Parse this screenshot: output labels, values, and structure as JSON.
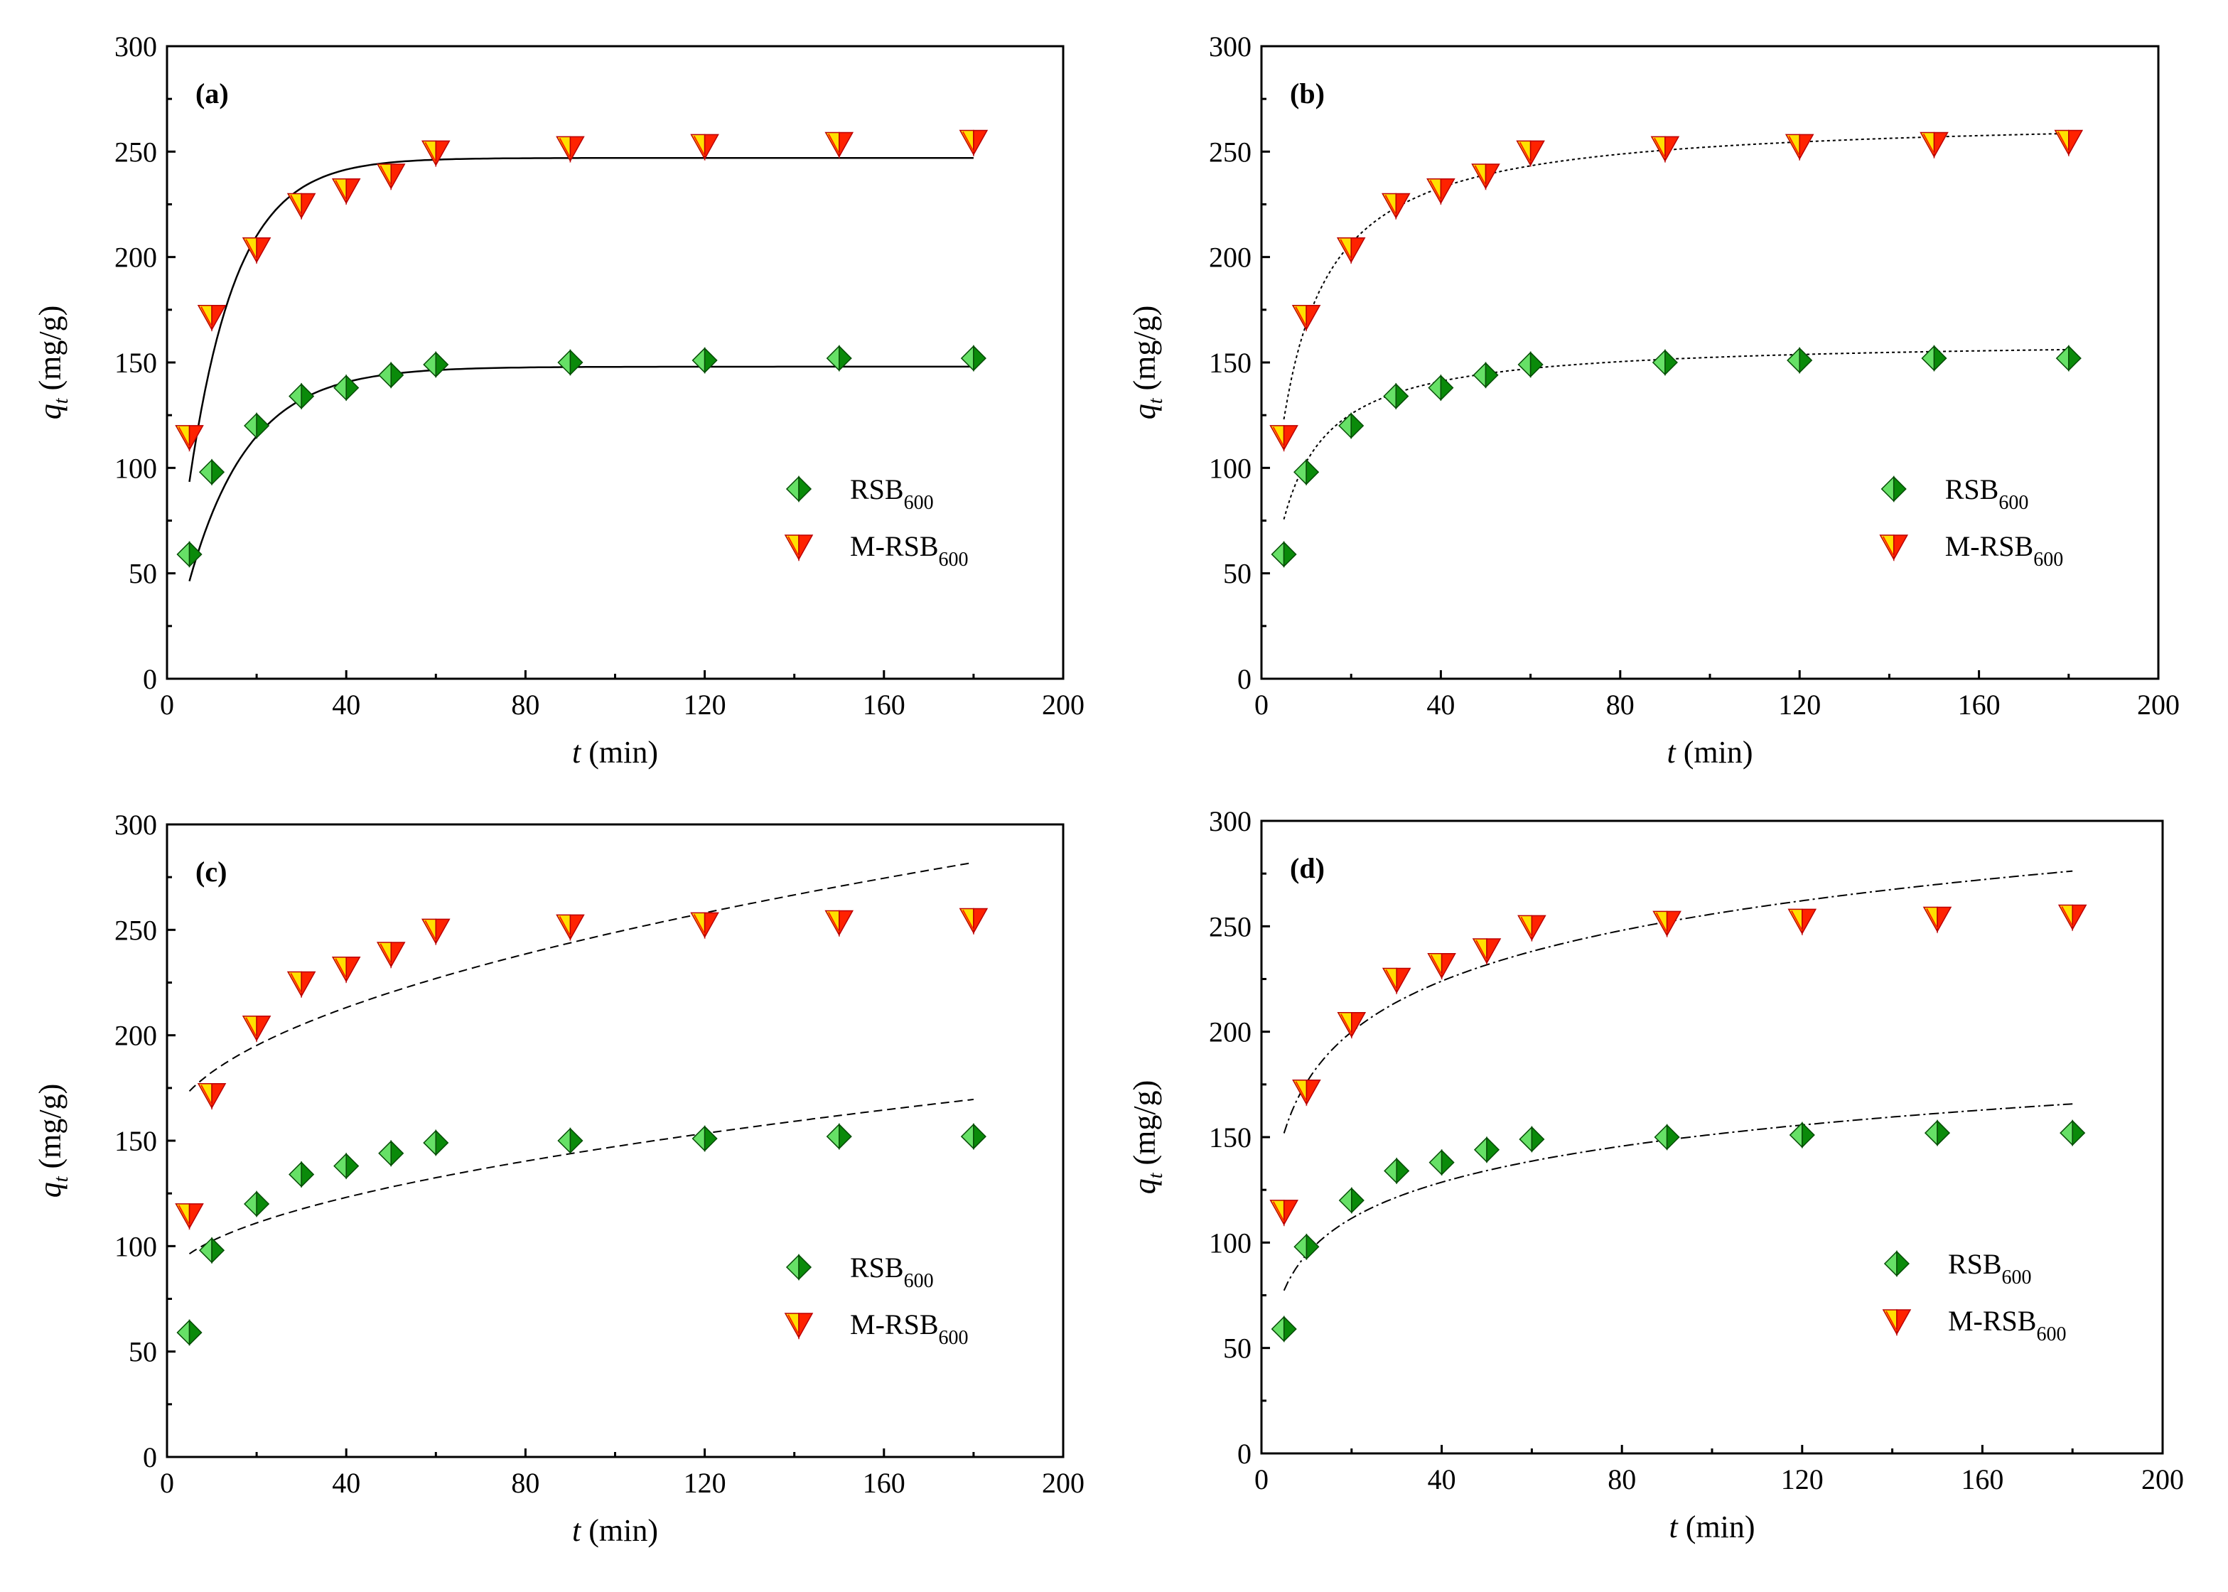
{
  "colors": {
    "rsb_light": "#66e066",
    "rsb_dark": "#0a8a0a",
    "mrsb_fill": "#ffe000",
    "mrsb_edge": "#ff2200",
    "axis": "#000000"
  },
  "chart_data": [
    {
      "panel": "(a)",
      "type": "scatter",
      "fit_style": "solid",
      "fit_model": "pseudo-first-order",
      "xlabel": {
        "var": "t",
        "unit": " (min)"
      },
      "ylabel": {
        "var": "q",
        "sub": "t",
        "unit": " (mg/g)"
      },
      "xlim": [
        0,
        200
      ],
      "ylim": [
        0,
        300
      ],
      "xticks": [
        0,
        40,
        80,
        120,
        160,
        200
      ],
      "yticks": [
        0,
        50,
        100,
        150,
        200,
        250,
        300
      ],
      "x": [
        5,
        10,
        20,
        30,
        40,
        50,
        60,
        90,
        120,
        150,
        180
      ],
      "series": [
        {
          "name": "RSB",
          "sub": "600",
          "marker": "diamond",
          "values": [
            59,
            98,
            120,
            134,
            138,
            144,
            149,
            150,
            151,
            152,
            152
          ]
        },
        {
          "name": "M-RSB",
          "sub": "600",
          "marker": "triangle-down",
          "values": [
            115,
            172,
            204,
            225,
            232,
            239,
            250,
            252,
            253,
            254,
            255
          ]
        }
      ],
      "fits": [
        {
          "series": "RSB",
          "qe": 148,
          "k": 0.075,
          "t0": 0,
          "tstart": 5,
          "tend": 180
        },
        {
          "series": "M-RSB",
          "qe": 247,
          "k": 0.095,
          "t0": 0,
          "tstart": 5,
          "tend": 180
        }
      ],
      "legend": "right-middle"
    },
    {
      "panel": "(b)",
      "type": "scatter",
      "fit_style": "dotted",
      "fit_model": "pseudo-second-order",
      "xlabel": {
        "var": "t",
        "unit": " (min)"
      },
      "ylabel": {
        "var": "q",
        "sub": "t",
        "unit": " (mg/g)"
      },
      "xlim": [
        0,
        200
      ],
      "ylim": [
        0,
        300
      ],
      "xticks": [
        0,
        40,
        80,
        120,
        160,
        200
      ],
      "yticks": [
        0,
        50,
        100,
        150,
        200,
        250,
        300
      ],
      "x": [
        5,
        10,
        20,
        30,
        40,
        50,
        60,
        90,
        120,
        150,
        180
      ],
      "series": [
        {
          "name": "RSB",
          "sub": "600",
          "marker": "diamond",
          "values": [
            59,
            98,
            120,
            134,
            138,
            144,
            149,
            150,
            151,
            152,
            152
          ]
        },
        {
          "name": "M-RSB",
          "sub": "600",
          "marker": "triangle-down",
          "values": [
            115,
            172,
            204,
            225,
            232,
            239,
            250,
            252,
            253,
            254,
            255
          ]
        }
      ],
      "fits": [
        {
          "series": "RSB",
          "qe": 161,
          "k": 0.0011,
          "tstart": 5,
          "tend": 180
        },
        {
          "series": "M-RSB",
          "qe": 267,
          "k": 0.00064,
          "tstart": 5,
          "tend": 180
        }
      ],
      "legend": "right-middle"
    },
    {
      "panel": "(c)",
      "type": "scatter",
      "fit_style": "dashed",
      "fit_model": "intraparticle-diffusion",
      "xlabel": {
        "var": "t",
        "unit": " (min)"
      },
      "ylabel": {
        "var": "q",
        "sub": "t",
        "unit": " (mg/g)"
      },
      "xlim": [
        0,
        200
      ],
      "ylim": [
        0,
        300
      ],
      "xticks": [
        0,
        40,
        80,
        120,
        160,
        200
      ],
      "yticks": [
        0,
        50,
        100,
        150,
        200,
        250,
        300
      ],
      "x": [
        5,
        10,
        20,
        30,
        40,
        50,
        60,
        90,
        120,
        150,
        180
      ],
      "series": [
        {
          "name": "RSB",
          "sub": "600",
          "marker": "diamond",
          "values": [
            59,
            98,
            120,
            134,
            138,
            144,
            149,
            150,
            151,
            152,
            152
          ]
        },
        {
          "name": "M-RSB",
          "sub": "600",
          "marker": "triangle-down",
          "values": [
            115,
            172,
            204,
            225,
            232,
            239,
            250,
            252,
            253,
            254,
            255
          ]
        }
      ],
      "fits": [
        {
          "series": "RSB",
          "a": 81.7,
          "b": 6.55,
          "tstart": 5,
          "tend": 180
        },
        {
          "series": "M-RSB",
          "a": 151.8,
          "b": 9.7,
          "tstart": 5,
          "tend": 180
        }
      ],
      "legend": "right-middle"
    },
    {
      "panel": "(d)",
      "type": "scatter",
      "fit_style": "dash-dot",
      "fit_model": "elovich",
      "xlabel": {
        "var": "t",
        "unit": " (min)"
      },
      "ylabel": {
        "var": "q",
        "sub": "t",
        "unit": " (mg/g)"
      },
      "xlim": [
        0,
        200
      ],
      "ylim": [
        0,
        300
      ],
      "xticks": [
        0,
        40,
        80,
        120,
        160,
        200
      ],
      "yticks": [
        0,
        50,
        100,
        150,
        200,
        250,
        300
      ],
      "x": [
        5,
        10,
        20,
        30,
        40,
        50,
        60,
        90,
        120,
        150,
        180
      ],
      "series": [
        {
          "name": "RSB",
          "sub": "600",
          "marker": "diamond",
          "values": [
            59,
            98,
            120,
            134,
            138,
            144,
            149,
            150,
            151,
            152,
            152
          ]
        },
        {
          "name": "M-RSB",
          "sub": "600",
          "marker": "triangle-down",
          "values": [
            115,
            172,
            204,
            225,
            232,
            239,
            250,
            252,
            253,
            254,
            255
          ]
        }
      ],
      "fits": [
        {
          "series": "RSB",
          "a": 37.5,
          "b": 24.7,
          "tstart": 5,
          "tend": 180
        },
        {
          "series": "M-RSB",
          "a": 96.0,
          "b": 34.7,
          "tstart": 5,
          "tend": 180
        }
      ],
      "legend": "right-middle"
    }
  ]
}
